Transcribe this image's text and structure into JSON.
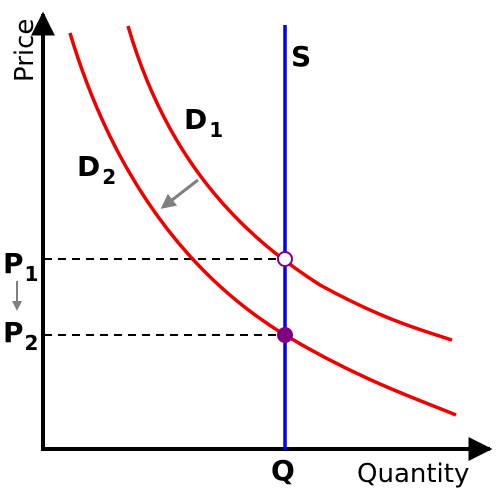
{
  "axes": {
    "y_label": "Price",
    "x_label": "Quantity"
  },
  "supply": {
    "label": "S",
    "color": "#0000ee"
  },
  "demand_1": {
    "label": "D",
    "subscript": "1",
    "color": "#ee0000"
  },
  "demand_2": {
    "label": "D",
    "subscript": "2",
    "color": "#ee0000"
  },
  "price_1": {
    "label": "P",
    "subscript": "1"
  },
  "price_2": {
    "label": "P",
    "subscript": "2"
  },
  "quantity": {
    "label": "Q"
  },
  "colors": {
    "axis": "#000000",
    "arrow": "#808080",
    "equilibrium_2_fill": "#800080",
    "equilibrium_1_fill": "#ffffff"
  },
  "shift_direction": "leftward demand shift, price falls from P1 to P2"
}
